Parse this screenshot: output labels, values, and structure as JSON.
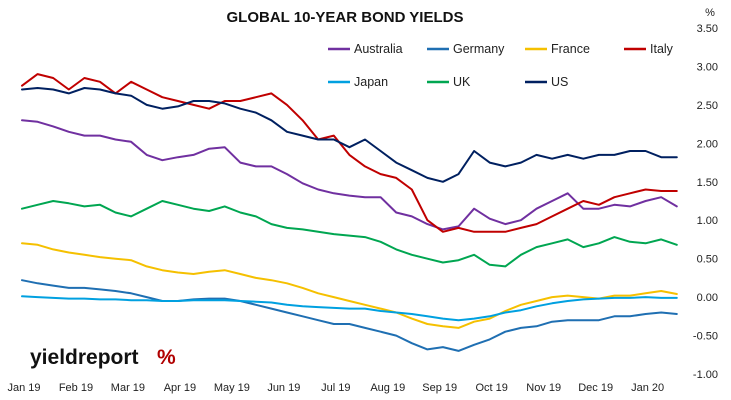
{
  "chart_data": {
    "type": "line",
    "title": "GLOBAL 10-YEAR BOND YIELDS",
    "unit_label": "%",
    "ylim": [
      -1.0,
      3.5
    ],
    "yticks": [
      "3.50",
      "3.00",
      "2.50",
      "2.00",
      "1.50",
      "1.00",
      "0.50",
      "0.00",
      "-0.50",
      "-1.00"
    ],
    "xtick_labels": [
      "Jan 19",
      "Feb 19",
      "Mar 19",
      "Apr 19",
      "May 19",
      "Jun 19",
      "Jul 19",
      "Aug 19",
      "Sep 19",
      "Oct 19",
      "Nov 19",
      "Dec 19",
      "Jan 20"
    ],
    "x_months": [
      0,
      1,
      2,
      3,
      4,
      5,
      6,
      7,
      8,
      9,
      10,
      11,
      12
    ],
    "xlim": [
      0,
      12.7
    ],
    "grid": false,
    "legend_position": "top-right",
    "series": [
      {
        "name": "Australia",
        "color": "#7030a0",
        "x": [
          0,
          0.3,
          0.6,
          0.9,
          1.2,
          1.5,
          1.8,
          2.1,
          2.4,
          2.7,
          3.0,
          3.3,
          3.6,
          3.9,
          4.2,
          4.5,
          4.8,
          5.1,
          5.4,
          5.7,
          6.0,
          6.3,
          6.6,
          6.9,
          7.2,
          7.5,
          7.8,
          8.1,
          8.4,
          8.7,
          9.0,
          9.3,
          9.6,
          9.9,
          10.2,
          10.5,
          10.8,
          11.1,
          11.4,
          11.7,
          12.0,
          12.3,
          12.6
        ],
        "values": [
          2.3,
          2.28,
          2.22,
          2.15,
          2.1,
          2.1,
          2.05,
          2.02,
          1.85,
          1.78,
          1.82,
          1.85,
          1.93,
          1.95,
          1.75,
          1.7,
          1.7,
          1.6,
          1.48,
          1.4,
          1.35,
          1.32,
          1.3,
          1.3,
          1.1,
          1.05,
          0.95,
          0.88,
          0.92,
          1.15,
          1.02,
          0.95,
          1.0,
          1.15,
          1.25,
          1.35,
          1.15,
          1.15,
          1.2,
          1.18,
          1.25,
          1.3,
          1.18
        ]
      },
      {
        "name": "Germany",
        "color": "#1f6fb2",
        "x": [
          0,
          0.3,
          0.6,
          0.9,
          1.2,
          1.5,
          1.8,
          2.1,
          2.4,
          2.7,
          3.0,
          3.3,
          3.6,
          3.9,
          4.2,
          4.5,
          4.8,
          5.1,
          5.4,
          5.7,
          6.0,
          6.3,
          6.6,
          6.9,
          7.2,
          7.5,
          7.8,
          8.1,
          8.4,
          8.7,
          9.0,
          9.3,
          9.6,
          9.9,
          10.2,
          10.5,
          10.8,
          11.1,
          11.4,
          11.7,
          12.0,
          12.3,
          12.6
        ],
        "values": [
          0.22,
          0.18,
          0.15,
          0.12,
          0.12,
          0.1,
          0.08,
          0.05,
          0.0,
          -0.05,
          -0.05,
          -0.03,
          -0.02,
          -0.02,
          -0.05,
          -0.1,
          -0.15,
          -0.2,
          -0.25,
          -0.3,
          -0.35,
          -0.35,
          -0.4,
          -0.45,
          -0.5,
          -0.6,
          -0.68,
          -0.65,
          -0.7,
          -0.62,
          -0.55,
          -0.45,
          -0.4,
          -0.38,
          -0.32,
          -0.3,
          -0.3,
          -0.3,
          -0.25,
          -0.25,
          -0.22,
          -0.2,
          -0.22
        ]
      },
      {
        "name": "France",
        "color": "#f5c000",
        "x": [
          0,
          0.3,
          0.6,
          0.9,
          1.2,
          1.5,
          1.8,
          2.1,
          2.4,
          2.7,
          3.0,
          3.3,
          3.6,
          3.9,
          4.2,
          4.5,
          4.8,
          5.1,
          5.4,
          5.7,
          6.0,
          6.3,
          6.6,
          6.9,
          7.2,
          7.5,
          7.8,
          8.1,
          8.4,
          8.7,
          9.0,
          9.3,
          9.6,
          9.9,
          10.2,
          10.5,
          10.8,
          11.1,
          11.4,
          11.7,
          12.0,
          12.3,
          12.6
        ],
        "values": [
          0.7,
          0.68,
          0.62,
          0.58,
          0.55,
          0.52,
          0.5,
          0.48,
          0.4,
          0.35,
          0.32,
          0.3,
          0.33,
          0.35,
          0.3,
          0.25,
          0.22,
          0.18,
          0.12,
          0.05,
          0.0,
          -0.05,
          -0.1,
          -0.15,
          -0.2,
          -0.28,
          -0.35,
          -0.38,
          -0.4,
          -0.32,
          -0.28,
          -0.18,
          -0.1,
          -0.05,
          0.0,
          0.02,
          0.0,
          -0.02,
          0.02,
          0.02,
          0.05,
          0.08,
          0.04
        ]
      },
      {
        "name": "Italy",
        "color": "#c00000",
        "x": [
          0,
          0.3,
          0.6,
          0.9,
          1.2,
          1.5,
          1.8,
          2.1,
          2.4,
          2.7,
          3.0,
          3.3,
          3.6,
          3.9,
          4.2,
          4.5,
          4.8,
          5.1,
          5.4,
          5.7,
          6.0,
          6.3,
          6.6,
          6.9,
          7.2,
          7.5,
          7.8,
          8.1,
          8.4,
          8.7,
          9.0,
          9.3,
          9.6,
          9.9,
          10.2,
          10.5,
          10.8,
          11.1,
          11.4,
          11.7,
          12.0,
          12.3,
          12.6
        ],
        "values": [
          2.75,
          2.9,
          2.85,
          2.7,
          2.85,
          2.8,
          2.65,
          2.8,
          2.7,
          2.6,
          2.55,
          2.5,
          2.45,
          2.55,
          2.55,
          2.6,
          2.65,
          2.5,
          2.3,
          2.05,
          2.1,
          1.85,
          1.7,
          1.6,
          1.55,
          1.4,
          1.0,
          0.85,
          0.9,
          0.85,
          0.85,
          0.85,
          0.9,
          0.95,
          1.05,
          1.15,
          1.25,
          1.2,
          1.3,
          1.35,
          1.4,
          1.38,
          1.38
        ]
      },
      {
        "name": "Japan",
        "color": "#00a0e0",
        "x": [
          0,
          0.3,
          0.6,
          0.9,
          1.2,
          1.5,
          1.8,
          2.1,
          2.4,
          2.7,
          3.0,
          3.3,
          3.6,
          3.9,
          4.2,
          4.5,
          4.8,
          5.1,
          5.4,
          5.7,
          6.0,
          6.3,
          6.6,
          6.9,
          7.2,
          7.5,
          7.8,
          8.1,
          8.4,
          8.7,
          9.0,
          9.3,
          9.6,
          9.9,
          10.2,
          10.5,
          10.8,
          11.1,
          11.4,
          11.7,
          12.0,
          12.3,
          12.6
        ],
        "values": [
          0.01,
          0.0,
          -0.01,
          -0.02,
          -0.02,
          -0.03,
          -0.03,
          -0.04,
          -0.04,
          -0.05,
          -0.05,
          -0.04,
          -0.04,
          -0.04,
          -0.05,
          -0.06,
          -0.07,
          -0.1,
          -0.12,
          -0.13,
          -0.14,
          -0.15,
          -0.15,
          -0.18,
          -0.2,
          -0.22,
          -0.25,
          -0.28,
          -0.3,
          -0.28,
          -0.25,
          -0.2,
          -0.17,
          -0.12,
          -0.08,
          -0.05,
          -0.03,
          -0.02,
          -0.01,
          -0.01,
          0.0,
          -0.01,
          -0.01
        ]
      },
      {
        "name": "UK",
        "color": "#00a651",
        "x": [
          0,
          0.3,
          0.6,
          0.9,
          1.2,
          1.5,
          1.8,
          2.1,
          2.4,
          2.7,
          3.0,
          3.3,
          3.6,
          3.9,
          4.2,
          4.5,
          4.8,
          5.1,
          5.4,
          5.7,
          6.0,
          6.3,
          6.6,
          6.9,
          7.2,
          7.5,
          7.8,
          8.1,
          8.4,
          8.7,
          9.0,
          9.3,
          9.6,
          9.9,
          10.2,
          10.5,
          10.8,
          11.1,
          11.4,
          11.7,
          12.0,
          12.3,
          12.6
        ],
        "values": [
          1.15,
          1.2,
          1.25,
          1.22,
          1.18,
          1.2,
          1.1,
          1.05,
          1.15,
          1.25,
          1.2,
          1.15,
          1.12,
          1.18,
          1.1,
          1.05,
          0.95,
          0.9,
          0.88,
          0.85,
          0.82,
          0.8,
          0.78,
          0.72,
          0.62,
          0.55,
          0.5,
          0.45,
          0.48,
          0.55,
          0.42,
          0.4,
          0.55,
          0.65,
          0.7,
          0.75,
          0.65,
          0.7,
          0.78,
          0.72,
          0.7,
          0.75,
          0.68
        ]
      },
      {
        "name": "US",
        "color": "#002060",
        "x": [
          0,
          0.3,
          0.6,
          0.9,
          1.2,
          1.5,
          1.8,
          2.1,
          2.4,
          2.7,
          3.0,
          3.3,
          3.6,
          3.9,
          4.2,
          4.5,
          4.8,
          5.1,
          5.4,
          5.7,
          6.0,
          6.3,
          6.6,
          6.9,
          7.2,
          7.5,
          7.8,
          8.1,
          8.4,
          8.7,
          9.0,
          9.3,
          9.6,
          9.9,
          10.2,
          10.5,
          10.8,
          11.1,
          11.4,
          11.7,
          12.0,
          12.3,
          12.6
        ],
        "values": [
          2.7,
          2.72,
          2.7,
          2.65,
          2.72,
          2.7,
          2.65,
          2.62,
          2.5,
          2.45,
          2.48,
          2.55,
          2.55,
          2.52,
          2.45,
          2.4,
          2.3,
          2.15,
          2.1,
          2.05,
          2.05,
          1.95,
          2.05,
          1.9,
          1.75,
          1.65,
          1.55,
          1.5,
          1.6,
          1.9,
          1.75,
          1.7,
          1.75,
          1.85,
          1.8,
          1.85,
          1.8,
          1.85,
          1.85,
          1.9,
          1.9,
          1.82,
          1.82
        ]
      }
    ]
  },
  "logo": {
    "word": "yieldreport",
    "symbol": "%"
  }
}
